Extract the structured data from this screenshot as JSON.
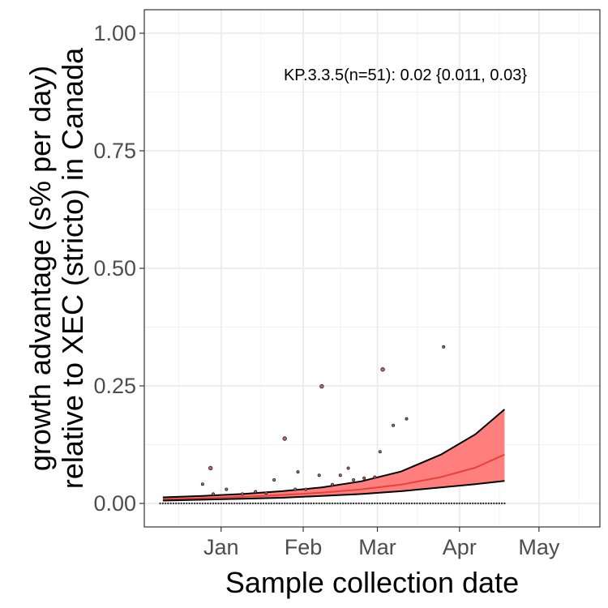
{
  "chart_data": {
    "type": "line",
    "xlabel": "Sample collection date",
    "ylabel_lines": [
      "growth advantage (s% per day)",
      "relative to XEC (stricto) in Canada"
    ],
    "annotation": "KP.3.3.5(n=51): 0.02 {0.011, 0.03}",
    "x_range": [
      "2024-12-03",
      "2025-05-24"
    ],
    "ylim": [
      -0.05,
      1.05
    ],
    "x_ticks": [
      {
        "date": "2025-01-01",
        "label": "Jan"
      },
      {
        "date": "2025-02-01",
        "label": "Feb"
      },
      {
        "date": "2025-03-01",
        "label": "Mar"
      },
      {
        "date": "2025-04-01",
        "label": "Apr"
      },
      {
        "date": "2025-05-01",
        "label": "May"
      }
    ],
    "x_minor_ticks": [
      "2024-12-16",
      "2025-01-16",
      "2025-02-15",
      "2025-03-16",
      "2025-04-16",
      "2025-05-16"
    ],
    "y_ticks": [
      0,
      0.25,
      0.5,
      0.75,
      1
    ],
    "y_tick_labels": [
      "0.00",
      "0.25",
      "0.50",
      "0.75",
      "1.00"
    ],
    "y_minor_ticks": [
      0.125,
      0.375,
      0.625,
      0.875
    ],
    "grid": true,
    "colors": {
      "ribbon": "#ff7f7f",
      "fit_line": "#e8413a",
      "bounds": "#000000",
      "points": "#b26a6a"
    },
    "fit": {
      "dates": [
        "2024-12-10",
        "2024-12-25",
        "2025-01-09",
        "2025-01-24",
        "2025-02-08",
        "2025-02-23",
        "2025-03-10",
        "2025-03-25",
        "2025-04-07",
        "2025-04-18"
      ],
      "mid": [
        0.009,
        0.011,
        0.014,
        0.018,
        0.023,
        0.03,
        0.04,
        0.056,
        0.076,
        0.104
      ],
      "lower": [
        0.006,
        0.008,
        0.01,
        0.012,
        0.016,
        0.02,
        0.026,
        0.034,
        0.041,
        0.048
      ],
      "upper": [
        0.013,
        0.016,
        0.02,
        0.026,
        0.034,
        0.047,
        0.068,
        0.104,
        0.147,
        0.2
      ]
    },
    "points": [
      {
        "date": "2024-12-25",
        "value": 0.041,
        "size": 1
      },
      {
        "date": "2024-12-28",
        "value": 0.075,
        "size": 2
      },
      {
        "date": "2024-12-29",
        "value": 0.02,
        "size": 1
      },
      {
        "date": "2025-01-03",
        "value": 0.03,
        "size": 1
      },
      {
        "date": "2025-01-09",
        "value": 0.02,
        "size": 1
      },
      {
        "date": "2025-01-14",
        "value": 0.025,
        "size": 1
      },
      {
        "date": "2025-01-18",
        "value": 0.022,
        "size": 1
      },
      {
        "date": "2025-01-21",
        "value": 0.05,
        "size": 1
      },
      {
        "date": "2025-01-25",
        "value": 0.138,
        "size": 2
      },
      {
        "date": "2025-01-29",
        "value": 0.03,
        "size": 1
      },
      {
        "date": "2025-01-30",
        "value": 0.067,
        "size": 1
      },
      {
        "date": "2025-02-02",
        "value": 0.03,
        "size": 1
      },
      {
        "date": "2025-02-07",
        "value": 0.06,
        "size": 1
      },
      {
        "date": "2025-02-08",
        "value": 0.249,
        "size": 2
      },
      {
        "date": "2025-02-12",
        "value": 0.04,
        "size": 1
      },
      {
        "date": "2025-02-15",
        "value": 0.06,
        "size": 1
      },
      {
        "date": "2025-02-18",
        "value": 0.075,
        "size": 1
      },
      {
        "date": "2025-02-20",
        "value": 0.05,
        "size": 1
      },
      {
        "date": "2025-02-24",
        "value": 0.054,
        "size": 1
      },
      {
        "date": "2025-02-28",
        "value": 0.056,
        "size": 1
      },
      {
        "date": "2025-03-02",
        "value": 0.11,
        "size": 1
      },
      {
        "date": "2025-03-03",
        "value": 0.285,
        "size": 2
      },
      {
        "date": "2025-03-07",
        "value": 0.166,
        "size": 1
      },
      {
        "date": "2025-03-12",
        "value": 0.18,
        "size": 1
      },
      {
        "date": "2025-03-26",
        "value": 0.333,
        "size": 1
      }
    ]
  }
}
